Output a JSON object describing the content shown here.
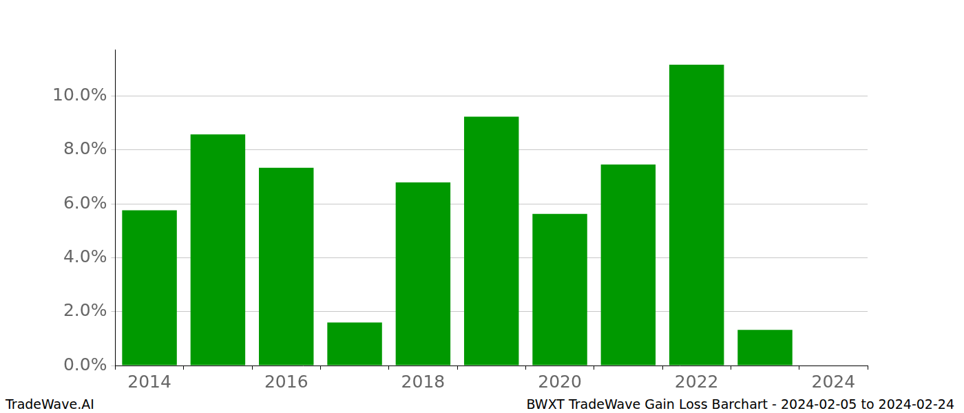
{
  "chart_data": {
    "type": "bar",
    "categories": [
      2014,
      null,
      2016,
      null,
      2018,
      null,
      2020,
      null,
      2022,
      null,
      2024
    ],
    "values": [
      5.76,
      8.58,
      7.34,
      1.6,
      6.8,
      9.24,
      5.63,
      7.46,
      11.17,
      1.32,
      null
    ],
    "color": "#009900",
    "ylim": [
      0,
      11.73
    ],
    "yticks": [
      {
        "value": 0,
        "label": "0.0%"
      },
      {
        "value": 2,
        "label": "2.0%"
      },
      {
        "value": 4,
        "label": "4.0%"
      },
      {
        "value": 6,
        "label": "6.0%"
      },
      {
        "value": 8,
        "label": "8.0%"
      },
      {
        "value": 10,
        "label": "10.0%"
      }
    ],
    "grid": true,
    "annotations": [
      "TradeWave.AI",
      "BWXT TradeWave Gain Loss Barchart - 2024-02-05 to 2024-02-24"
    ]
  }
}
